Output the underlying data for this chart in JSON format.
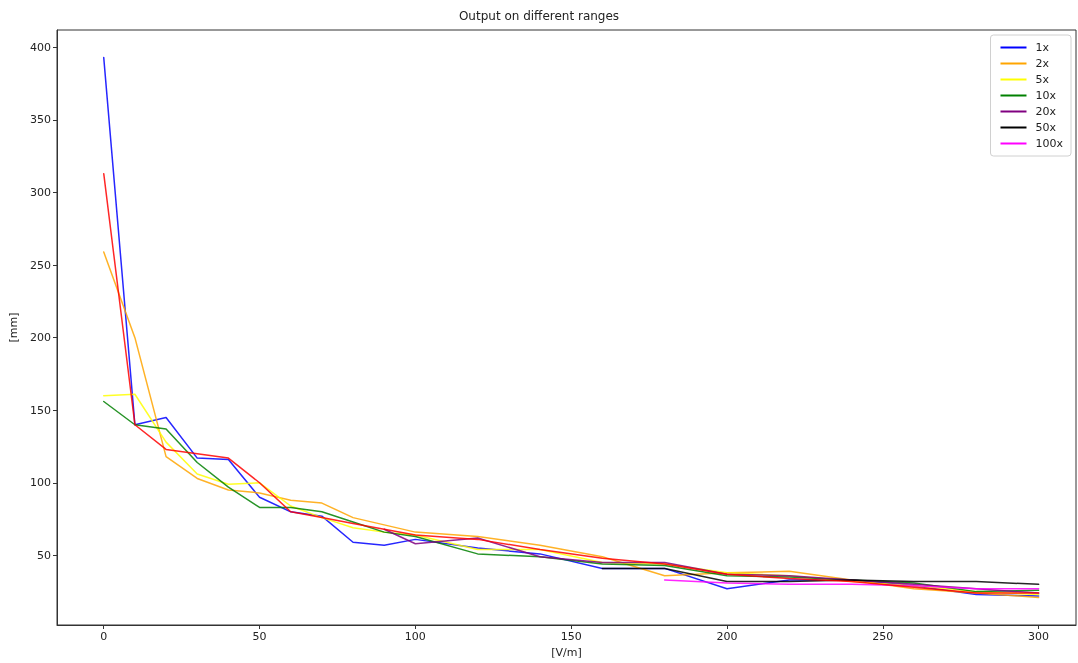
{
  "chart_data": {
    "type": "line",
    "title": "Output on different ranges",
    "xlabel": "[V/m]",
    "ylabel": "[mm]",
    "x": [
      0,
      10,
      20,
      30,
      40,
      50,
      60,
      70,
      80,
      90,
      100,
      120,
      140,
      160,
      180,
      200,
      220,
      240,
      260,
      280,
      300
    ],
    "series": [
      {
        "name": "1x",
        "color": "#0000ff",
        "values": [
          393,
          140,
          145,
          117,
          116,
          90,
          80,
          77,
          59,
          57,
          61,
          55,
          51,
          41,
          41,
          27,
          33,
          33,
          29,
          23,
          22
        ]
      },
      {
        "name": "2x",
        "color": "#ffa500",
        "values": [
          259,
          200,
          118,
          103,
          95,
          93,
          88,
          86,
          76,
          71,
          66,
          63,
          57,
          49,
          36,
          38,
          39,
          33,
          27,
          24,
          21
        ]
      },
      {
        "name": "5x",
        "color": "#ffff00",
        "values": [
          160,
          161,
          128,
          106,
          99,
          100,
          84,
          76,
          69,
          66,
          64,
          54,
          54,
          45,
          44,
          38,
          36,
          32,
          29,
          25,
          23
        ]
      },
      {
        "name": "10x",
        "color": "#008000",
        "values": [
          156,
          140,
          137,
          114,
          97,
          83,
          83,
          80,
          73,
          66,
          63,
          51,
          49,
          44,
          43,
          36,
          35,
          33,
          31,
          25,
          26
        ]
      },
      {
        "name": "20x",
        "color": "#800080",
        "values": [
          null,
          null,
          null,
          null,
          null,
          null,
          null,
          null,
          null,
          68,
          58,
          62,
          49,
          45,
          45,
          37,
          36,
          33,
          30,
          27,
          24
        ]
      },
      {
        "name": "50x",
        "color": "#000000",
        "values": [
          null,
          null,
          null,
          null,
          null,
          null,
          null,
          null,
          null,
          null,
          null,
          null,
          null,
          41,
          41,
          32,
          32,
          33,
          32,
          32,
          30
        ]
      },
      {
        "name": "100x",
        "color": "#ff00ff",
        "values": [
          null,
          null,
          null,
          null,
          null,
          null,
          null,
          null,
          null,
          null,
          null,
          null,
          null,
          null,
          33,
          31,
          30,
          30,
          29,
          27,
          27
        ]
      },
      {
        "color": "#ff0000",
        "values": [
          313,
          140,
          123,
          120,
          117,
          100,
          80,
          76,
          72,
          68,
          64,
          61,
          54,
          48,
          44,
          37,
          34,
          32,
          28,
          24,
          24
        ]
      }
    ],
    "xlim": [
      -15,
      312
    ],
    "ylim": [
      2,
      412
    ],
    "xticks": [
      0,
      50,
      100,
      150,
      200,
      250,
      300
    ],
    "yticks": [
      50,
      100,
      150,
      200,
      250,
      300,
      350,
      400
    ],
    "grid": false,
    "legend": "top right",
    "marker": "none",
    "line_style": "solid"
  }
}
